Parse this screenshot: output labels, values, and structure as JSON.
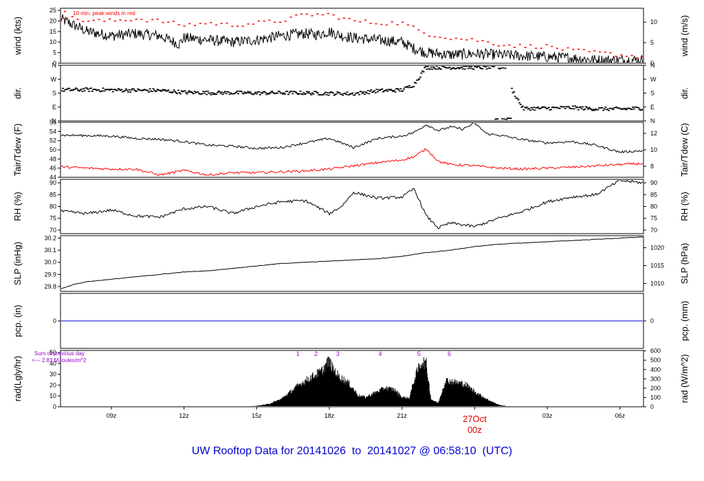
{
  "title": "UW Rooftop Data for 20141026  to  20141027 @ 06:58:10  (UTC)",
  "date_marker": {
    "date": "27Oct",
    "hour": "00z",
    "color": "#dd0000"
  },
  "x_axis": {
    "range_hours_utc": [
      6.9,
      30.97
    ],
    "ticks": [
      {
        "h": 9,
        "label": "09z"
      },
      {
        "h": 12,
        "label": "12z"
      },
      {
        "h": 15,
        "label": "15z"
      },
      {
        "h": 18,
        "label": "18z"
      },
      {
        "h": 21,
        "label": "21z"
      },
      {
        "h": 27,
        "label": "03z"
      },
      {
        "h": 30,
        "label": "06z"
      }
    ]
  },
  "chart_data": [
    {
      "type": "line",
      "panel": "wind",
      "ylabel": "wind (kts)",
      "ylabel_right": "wind (m/s)",
      "ylim": [
        0,
        26
      ],
      "yticks": [
        "0",
        "5",
        "10",
        "15",
        "20",
        "25"
      ],
      "yticks_right": [
        "0",
        "5",
        "10"
      ],
      "annotation": "10 min. peak winds in red",
      "series": [
        {
          "color": "#000000",
          "x": [
            6.9,
            8,
            9,
            10,
            11,
            11.8,
            12,
            13,
            14,
            15,
            16,
            17,
            17.5,
            18,
            18.5,
            19,
            20,
            21,
            21.5,
            22,
            23,
            24,
            25,
            26,
            27,
            28,
            29,
            30,
            30.97
          ],
          "y": [
            21,
            15,
            13,
            14,
            13,
            9,
            12,
            11,
            10,
            11,
            13,
            14,
            13.5,
            15,
            13,
            12,
            11,
            10,
            7,
            5,
            4,
            4.5,
            4,
            3.5,
            3,
            2.5,
            1.5,
            1.5,
            1.5
          ]
        },
        {
          "color": "#ff0000",
          "style": "dots",
          "x": [
            7,
            8,
            9,
            10,
            11,
            12,
            13,
            14,
            15,
            16,
            17,
            18,
            19,
            20,
            21,
            22,
            23,
            24,
            25,
            26,
            27,
            28,
            29,
            30,
            30.9
          ],
          "y": [
            22,
            20,
            20,
            21,
            20,
            18,
            19,
            18,
            19,
            20,
            23,
            23,
            20,
            19,
            19,
            14,
            12,
            11,
            9,
            8,
            8,
            6,
            5,
            4,
            3
          ]
        }
      ]
    },
    {
      "type": "scatter",
      "panel": "dir",
      "ylabel": "dir.",
      "ylabel_right": "dir.",
      "ylim": [
        0,
        360
      ],
      "yticks": [
        "N",
        "E",
        "S",
        "W",
        "N"
      ],
      "yticks_right": [
        "N",
        "E",
        "S",
        "W",
        "N"
      ],
      "series": [
        {
          "color": "#000000",
          "x": [
            7,
            8,
            9,
            10,
            11,
            12,
            13,
            14,
            15,
            16,
            17,
            18,
            19,
            20,
            21,
            21.5,
            22,
            22.5,
            23,
            24,
            25,
            26,
            27,
            28,
            29,
            30,
            30.9
          ],
          "y": [
            200,
            202,
            200,
            198,
            197,
            185,
            182,
            182,
            180,
            182,
            181,
            178,
            176,
            195,
            200,
            235,
            350,
            352,
            348,
            346,
            349,
            80,
            82,
            86,
            78,
            77,
            82
          ]
        }
      ]
    },
    {
      "type": "line",
      "panel": "temperature",
      "ylabel": "Tair/Tdew (F)",
      "ylabel_right": "Tair/Tdew (C)",
      "ylim": [
        44,
        56
      ],
      "yticks": [
        "44",
        "46",
        "48",
        "50",
        "52",
        "54",
        "56"
      ],
      "yticks_right": [
        "8",
        "10",
        "12"
      ],
      "series": [
        {
          "color": "#000000",
          "x": [
            6.9,
            8,
            9,
            10,
            11,
            12,
            13,
            14,
            15,
            16,
            17,
            18,
            19,
            20,
            21,
            21.5,
            22,
            22.5,
            23,
            23.5,
            24,
            24.5,
            25,
            26,
            27,
            28,
            29,
            30,
            30.97
          ],
          "y": [
            53.2,
            53.1,
            53,
            52.5,
            52.3,
            51.8,
            51,
            50.8,
            50.3,
            50.5,
            51.5,
            52.5,
            50.5,
            52.5,
            53,
            53.8,
            55.5,
            54.2,
            55,
            54.5,
            55.8,
            53.5,
            53.2,
            52.2,
            51.5,
            51.8,
            51,
            49.5,
            49.8
          ]
        },
        {
          "color": "#ff0000",
          "x": [
            6.9,
            8,
            9,
            10,
            11,
            12,
            13,
            14,
            15,
            16,
            17,
            18,
            19,
            20,
            21,
            21.5,
            22,
            22.5,
            23,
            24,
            25,
            26,
            27,
            28,
            29,
            30,
            30.97
          ],
          "y": [
            46.3,
            46,
            45.8,
            45.8,
            44.5,
            45.5,
            44.5,
            45,
            45,
            45.2,
            45.4,
            45.8,
            46.5,
            47.2,
            47.8,
            48.5,
            50.2,
            47.5,
            46.8,
            46.5,
            46,
            45.8,
            46,
            46.2,
            46.5,
            46.8,
            47
          ]
        }
      ]
    },
    {
      "type": "line",
      "panel": "humidity",
      "ylabel": "RH (%)",
      "ylabel_right": "RH (%)",
      "ylim": [
        68.5,
        91.5
      ],
      "yticks": [
        "70",
        "75",
        "80",
        "85",
        "90"
      ],
      "yticks_right": [
        "70",
        "75",
        "80",
        "85",
        "90"
      ],
      "series": [
        {
          "color": "#000000",
          "x": [
            6.9,
            8,
            9,
            10,
            11,
            12,
            13,
            14,
            15,
            16,
            17,
            18,
            18.5,
            19,
            20,
            21,
            21.5,
            22,
            22.5,
            23,
            24,
            25,
            26,
            27,
            28,
            29,
            29.5,
            30,
            30.97
          ],
          "y": [
            78,
            77,
            78.5,
            76,
            75.5,
            79,
            80,
            77,
            80,
            82,
            82.5,
            77,
            80,
            86,
            83.5,
            84,
            87.5,
            76,
            71,
            73,
            71.5,
            75,
            78,
            82,
            84,
            85,
            88,
            91,
            90
          ]
        }
      ]
    },
    {
      "type": "line",
      "panel": "pressure",
      "ylabel": "SLP (inHg)",
      "ylabel_right": "SLP (hPa)",
      "ylim": [
        29.76,
        30.22
      ],
      "yticks": [
        "29.8",
        "29.9",
        "30.0",
        "30.1",
        "30.2"
      ],
      "yticks_right": [
        "1010",
        "1015",
        "1020"
      ],
      "series": [
        {
          "color": "#000000",
          "x": [
            6.9,
            7.5,
            8,
            9,
            10,
            11,
            12,
            13,
            14,
            15,
            16,
            17,
            18,
            19,
            20,
            21,
            22,
            23,
            24,
            25,
            26,
            27,
            28,
            29,
            30,
            30.97
          ],
          "y": [
            29.78,
            29.82,
            29.84,
            29.86,
            29.88,
            29.9,
            29.92,
            29.93,
            29.95,
            29.97,
            29.99,
            30.0,
            30.01,
            30.02,
            30.03,
            30.05,
            30.08,
            30.1,
            30.13,
            30.15,
            30.16,
            30.17,
            30.18,
            30.19,
            30.2,
            30.21
          ]
        }
      ]
    },
    {
      "type": "line",
      "panel": "precipitation",
      "ylabel": "pcp. (in)",
      "ylabel_right": "pcp. (mm)",
      "ylim": [
        -1,
        1
      ],
      "yticks": [
        "0"
      ],
      "yticks_right": [
        "0"
      ],
      "series": [
        {
          "color": "#0000cc",
          "x": [
            6.9,
            30.97
          ],
          "y": [
            0,
            0
          ]
        }
      ]
    },
    {
      "type": "area",
      "panel": "radiation",
      "ylabel": "rad(Lgly/hr)",
      "ylabel_right": "rad (W/m^2)",
      "ylim": [
        0,
        52
      ],
      "yticks": [
        "0",
        "10",
        "20",
        "30",
        "40",
        "50"
      ],
      "yticks_right": [
        "0",
        "100",
        "200",
        "300",
        "400",
        "500",
        "600"
      ],
      "annotation": [
        "Sum of previous day",
        "<--- 2.83 MJoules/m^2"
      ],
      "peak_labels": [
        {
          "h": 16.7,
          "label": "1"
        },
        {
          "h": 17.45,
          "label": "2"
        },
        {
          "h": 18.35,
          "label": "3"
        },
        {
          "h": 20.1,
          "label": "4"
        },
        {
          "h": 21.7,
          "label": "5"
        },
        {
          "h": 22.95,
          "label": "6"
        }
      ],
      "series": [
        {
          "color": "#000000",
          "x": [
            14.3,
            15,
            15.5,
            16,
            16.3,
            16.8,
            17.3,
            17.7,
            17.9,
            18.0,
            18.1,
            18.4,
            18.8,
            19.2,
            19.5,
            19.9,
            20.3,
            20.7,
            21.0,
            21.3,
            21.5,
            21.7,
            21.85,
            22.0,
            22.2,
            22.5,
            22.8,
            23.2,
            23.6,
            24.0,
            24.5,
            25.0,
            25.5
          ],
          "y": [
            0,
            1,
            3,
            8,
            14,
            24,
            32,
            38,
            46,
            48,
            42,
            32,
            25,
            12,
            10,
            15,
            20,
            18,
            10,
            9,
            28,
            42,
            48,
            45,
            8,
            4,
            28,
            26,
            24,
            16,
            8,
            2,
            0
          ]
        }
      ]
    }
  ]
}
